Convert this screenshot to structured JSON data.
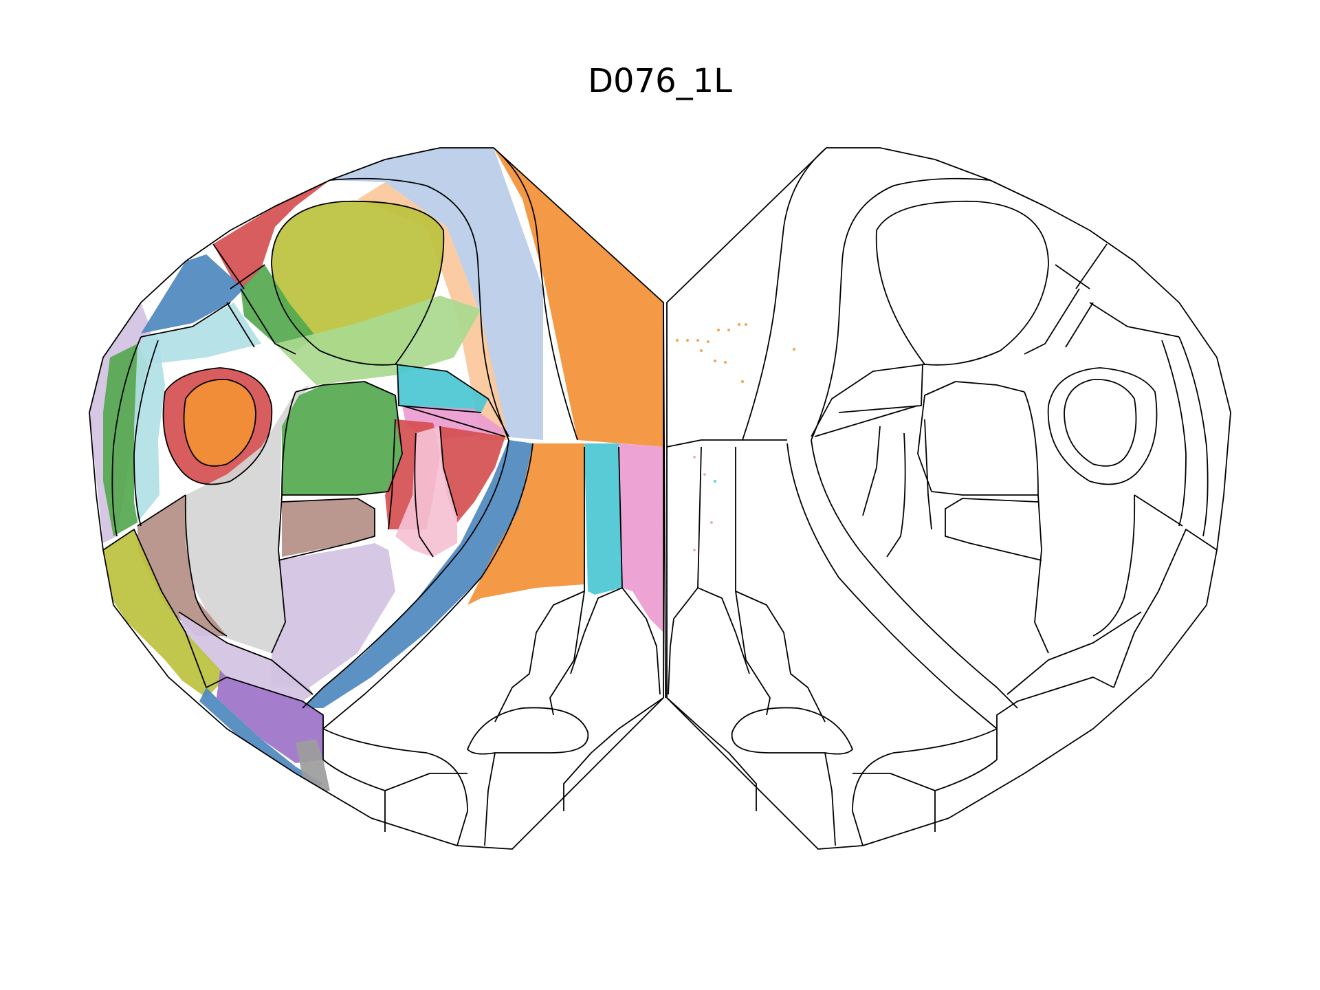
{
  "figure": {
    "title": "D076_1L"
  },
  "palette": {
    "blue": "#4e88bf",
    "light_blue": "#b9cce8",
    "orange": "#f39035",
    "light_orange": "#fbc89b",
    "green": "#55a84f",
    "light_green": "#a9d98e",
    "red": "#d54f51",
    "pink": "#ec9cd0",
    "light_pink": "#f5c0d2",
    "olive": "#bcc23e",
    "cyan": "#4bc7d2",
    "light_cyan": "#b0dfe6",
    "brown": "#b48f86",
    "lilac": "#d3c2e2",
    "purple": "#9c72c8",
    "grey": "#d5d5d5",
    "dark_grey": "#9c9c9c",
    "outline": "#000000"
  }
}
